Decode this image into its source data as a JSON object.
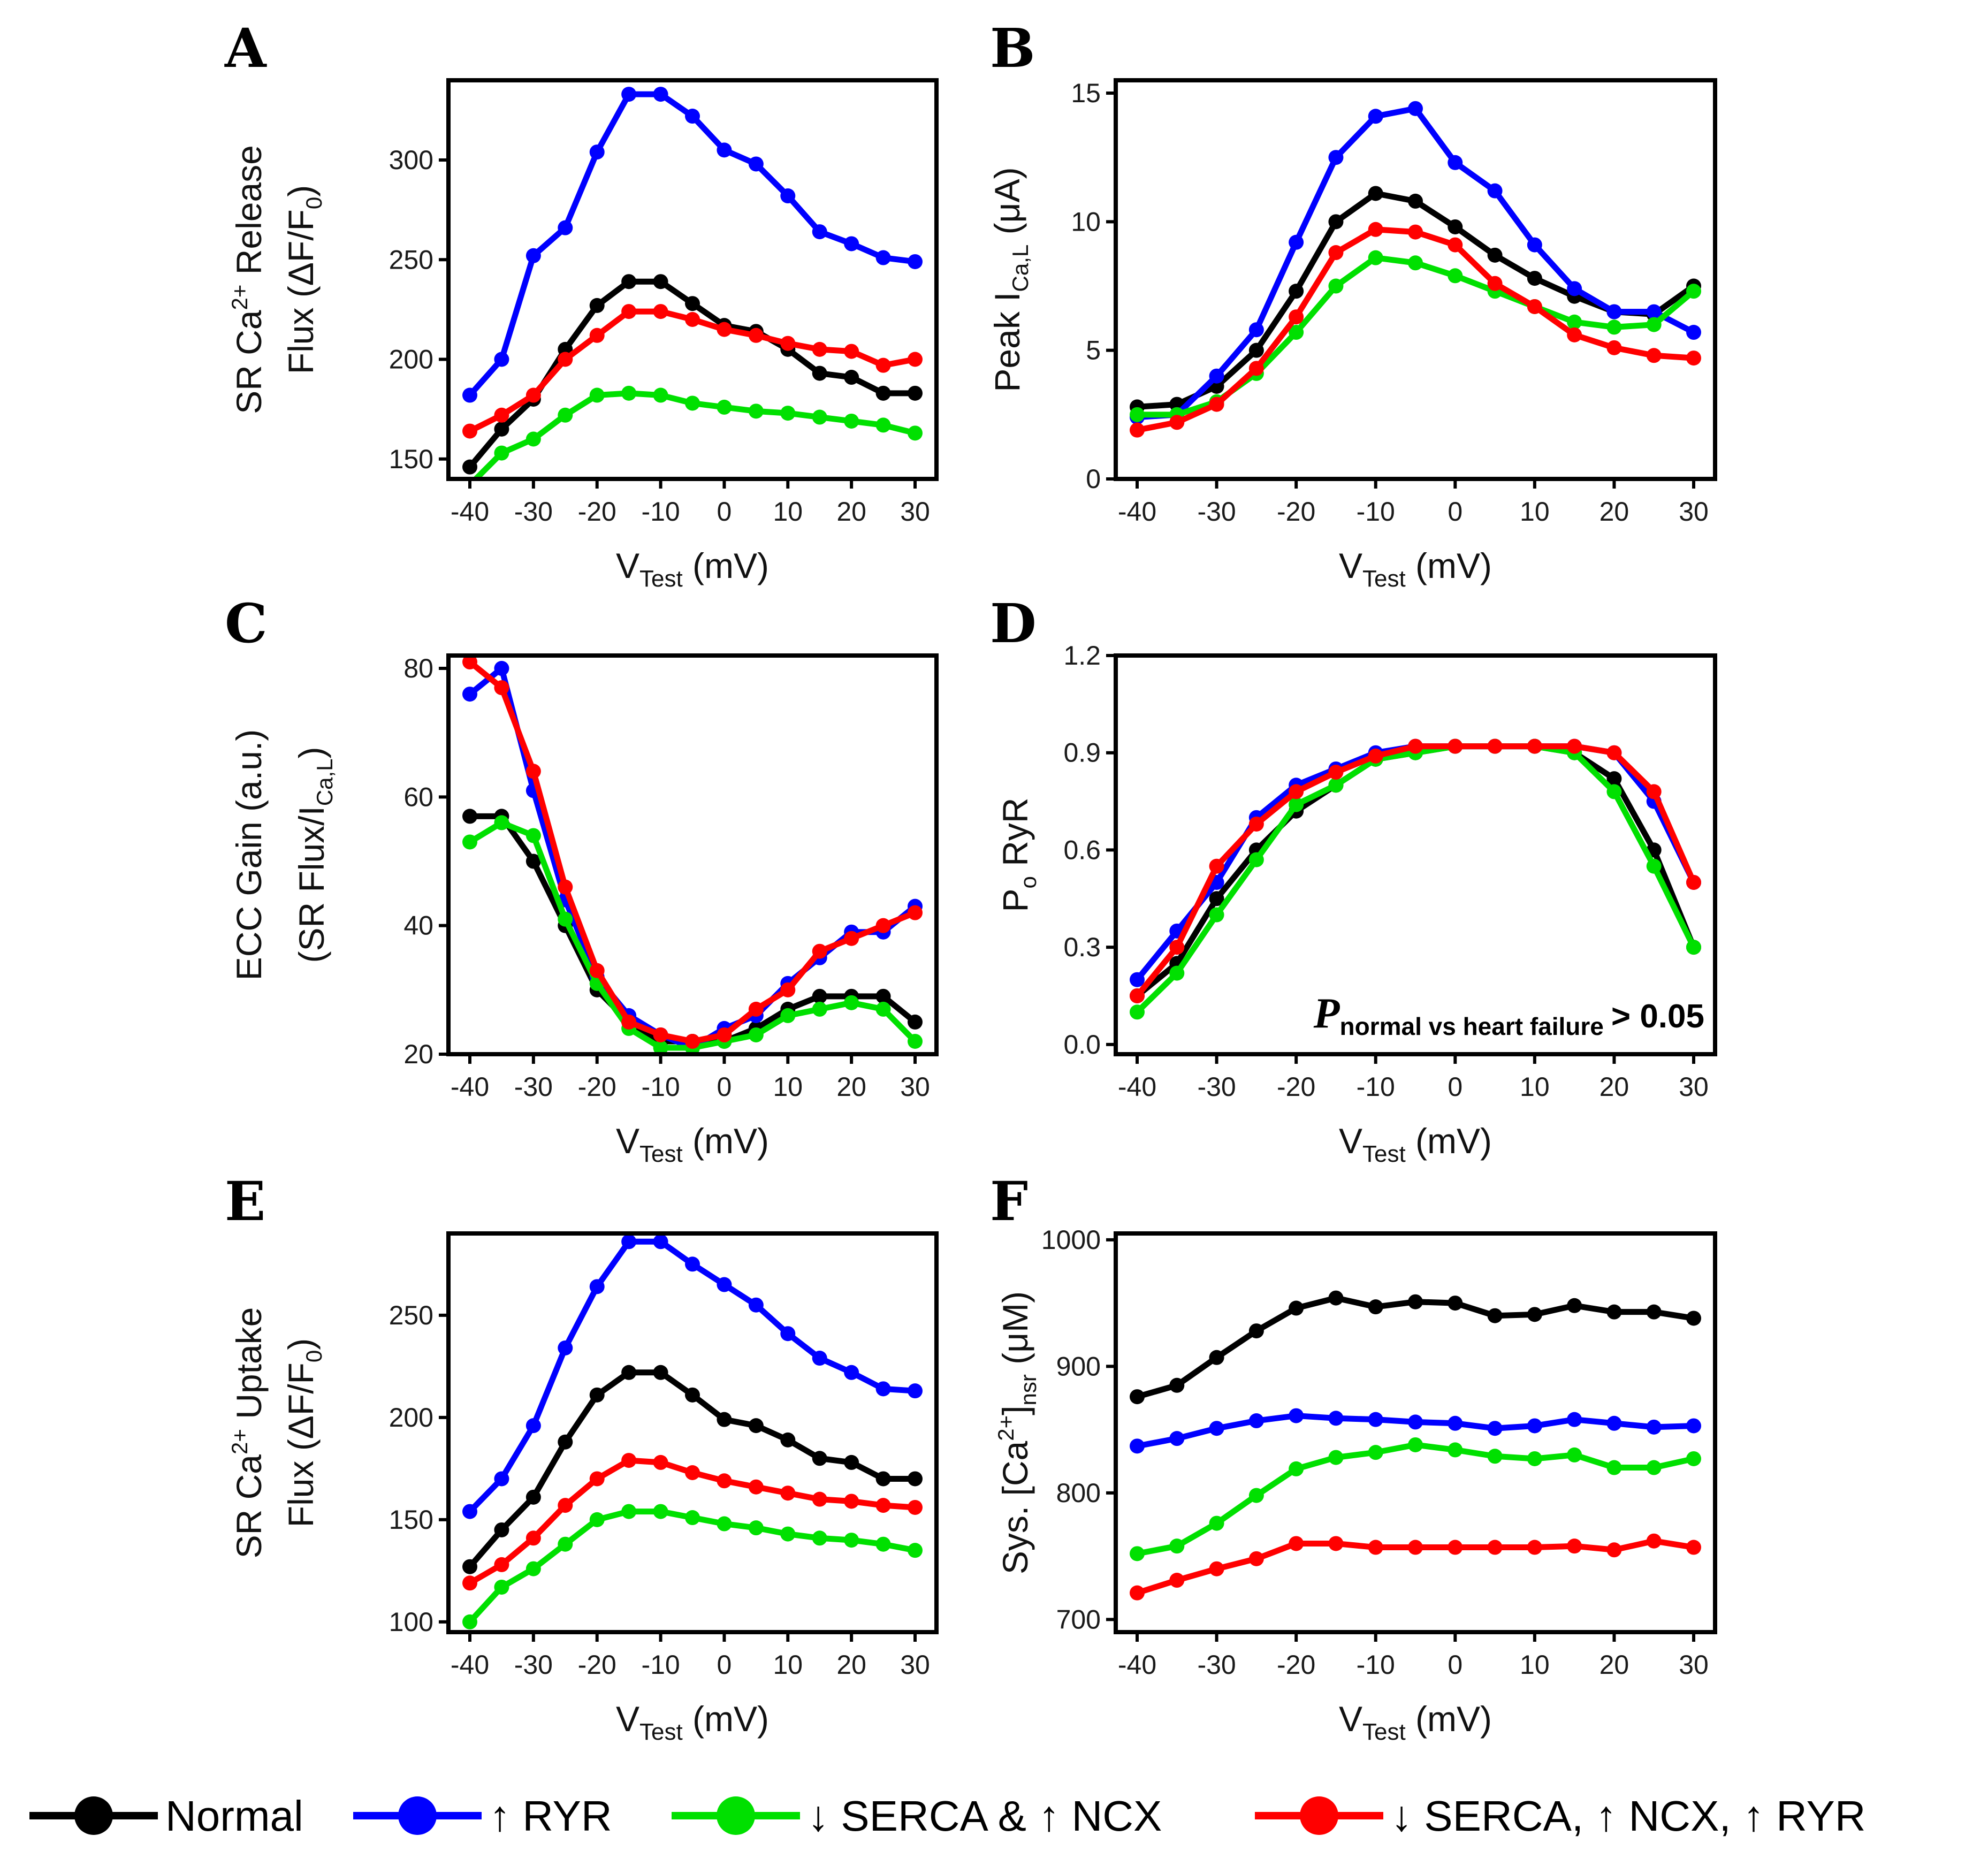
{
  "series_meta": [
    {
      "key": "normal",
      "name": "Normal",
      "color": "#000000"
    },
    {
      "key": "ryr",
      "name": "↑ RYR",
      "color": "#0000ff"
    },
    {
      "key": "serca_ncx",
      "name": "↓ SERCA & ↑ NCX",
      "color": "#00e000"
    },
    {
      "key": "serca_ncx_ryr",
      "name": "↓ SERCA, ↑ NCX, ↑ RYR",
      "color": "#ff0000"
    }
  ],
  "legend_items": [
    "Normal",
    "↑ RYR",
    "↓ SERCA & ↑ NCX",
    "↓ SERCA, ↑ NCX, ↑ RYR"
  ],
  "annotation_D": {
    "p": "P",
    "subscript": "normal vs heart failure",
    "comparator": "> 0.05"
  },
  "chart_data": [
    {
      "id": "A",
      "letter": "A",
      "type": "line",
      "xlabel_main": "V",
      "xlabel_sub": "Test",
      "xlabel_unit": " (mV)",
      "ylabel_line1": [
        "SR Ca",
        "2+",
        " Release"
      ],
      "ylabel_line2": [
        "Flux (ΔF/F",
        "0",
        ")"
      ],
      "x": [
        -40,
        -35,
        -30,
        -25,
        -20,
        -15,
        -10,
        -5,
        0,
        5,
        10,
        15,
        20,
        25,
        30
      ],
      "xticks": [
        -40,
        -30,
        -20,
        -10,
        0,
        10,
        20,
        30
      ],
      "xtick_labels": [
        "-40",
        "-30",
        "-20",
        "-10",
        "0",
        "10",
        "20",
        "30"
      ],
      "ylim": [
        140,
        340
      ],
      "yticks": [
        150,
        200,
        250,
        300
      ],
      "ytick_labels": [
        "150",
        "200",
        "250",
        "300"
      ],
      "series": [
        {
          "name": "Normal",
          "values": [
            146,
            165,
            180,
            205,
            227,
            239,
            239,
            228,
            217,
            214,
            205,
            193,
            191,
            183,
            183
          ]
        },
        {
          "name": "↑ RYR",
          "values": [
            182,
            200,
            252,
            266,
            304,
            333,
            333,
            322,
            305,
            298,
            282,
            264,
            258,
            251,
            249
          ]
        },
        {
          "name": "↓ SERCA & ↑ NCX",
          "values": [
            137,
            153,
            160,
            172,
            182,
            183,
            182,
            178,
            176,
            174,
            173,
            171,
            169,
            167,
            163
          ]
        },
        {
          "name": "↓ SERCA, ↑ NCX, ↑ RYR",
          "values": [
            164,
            172,
            182,
            200,
            212,
            224,
            224,
            220,
            215,
            212,
            208,
            205,
            204,
            197,
            200
          ]
        }
      ]
    },
    {
      "id": "B",
      "letter": "B",
      "type": "line",
      "xlabel_main": "V",
      "xlabel_sub": "Test",
      "xlabel_unit": " (mV)",
      "ylabel_line1": [
        "Peak I",
        "Ca,L",
        " (μA)"
      ],
      "x": [
        -40,
        -35,
        -30,
        -25,
        -20,
        -15,
        -10,
        -5,
        0,
        5,
        10,
        15,
        20,
        25,
        30
      ],
      "xticks": [
        -40,
        -30,
        -20,
        -10,
        0,
        10,
        20,
        30
      ],
      "xtick_labels": [
        "-40",
        "-30",
        "-20",
        "-10",
        "0",
        "10",
        "20",
        "30"
      ],
      "ylim": [
        0,
        15.5
      ],
      "yticks": [
        0,
        5,
        10,
        15
      ],
      "ytick_labels": [
        "0",
        "5",
        "10",
        "15"
      ],
      "series": [
        {
          "name": "Normal",
          "values": [
            2.8,
            2.9,
            3.6,
            5.0,
            7.3,
            10.0,
            11.1,
            10.8,
            9.8,
            8.7,
            7.8,
            7.1,
            6.5,
            6.4,
            7.5
          ]
        },
        {
          "name": "↑ RYR",
          "values": [
            2.4,
            2.5,
            4.0,
            5.8,
            9.2,
            12.5,
            14.1,
            14.4,
            12.3,
            11.2,
            9.1,
            7.4,
            6.5,
            6.5,
            5.7
          ]
        },
        {
          "name": "↓ SERCA & ↑ NCX",
          "values": [
            2.5,
            2.5,
            3.0,
            4.1,
            5.7,
            7.5,
            8.6,
            8.4,
            7.9,
            7.3,
            6.7,
            6.1,
            5.9,
            6.0,
            7.3
          ]
        },
        {
          "name": "↓ SERCA, ↑ NCX, ↑ RYR",
          "values": [
            1.9,
            2.2,
            2.9,
            4.3,
            6.3,
            8.8,
            9.7,
            9.6,
            9.1,
            7.6,
            6.7,
            5.6,
            5.1,
            4.8,
            4.7
          ]
        }
      ]
    },
    {
      "id": "C",
      "letter": "C",
      "type": "line",
      "xlabel_main": "V",
      "xlabel_sub": "Test",
      "xlabel_unit": " (mV)",
      "ylabel_line1": [
        "ECC Gain (a.u.)"
      ],
      "ylabel_line2": [
        "(SR Flux/I",
        "Ca,L",
        ")"
      ],
      "x": [
        -40,
        -35,
        -30,
        -25,
        -20,
        -15,
        -10,
        -5,
        0,
        5,
        10,
        15,
        20,
        25,
        30
      ],
      "xticks": [
        -40,
        -30,
        -20,
        -10,
        0,
        10,
        20,
        30
      ],
      "xtick_labels": [
        "-40",
        "-30",
        "-20",
        "-10",
        "0",
        "10",
        "20",
        "30"
      ],
      "ylim": [
        20,
        82
      ],
      "yticks": [
        20,
        40,
        60,
        80
      ],
      "ytick_labels": [
        "20",
        "40",
        "60",
        "80"
      ],
      "series": [
        {
          "name": "Normal",
          "values": [
            57,
            57,
            50,
            40,
            30,
            25,
            22,
            22,
            22,
            24,
            27,
            29,
            29,
            29,
            25
          ]
        },
        {
          "name": "↑ RYR",
          "values": [
            76,
            80,
            61,
            44,
            32,
            26,
            23,
            21,
            24,
            26,
            31,
            35,
            39,
            39,
            43
          ]
        },
        {
          "name": "↓ SERCA & ↑ NCX",
          "values": [
            53,
            56,
            54,
            41,
            31,
            24,
            21,
            21,
            22,
            23,
            26,
            27,
            28,
            27,
            22
          ]
        },
        {
          "name": "↓ SERCA, ↑ NCX, ↑ RYR",
          "values": [
            81,
            77,
            64,
            46,
            33,
            25,
            23,
            22,
            23,
            27,
            30,
            36,
            38,
            40,
            42
          ]
        }
      ]
    },
    {
      "id": "D",
      "letter": "D",
      "type": "line",
      "xlabel_main": "V",
      "xlabel_sub": "Test",
      "xlabel_unit": " (mV)",
      "ylabel_line1": [
        "P",
        "o",
        " RyR"
      ],
      "x": [
        -40,
        -35,
        -30,
        -25,
        -20,
        -15,
        -10,
        -5,
        0,
        5,
        10,
        15,
        20,
        25,
        30
      ],
      "xticks": [
        -40,
        -30,
        -20,
        -10,
        0,
        10,
        20,
        30
      ],
      "xtick_labels": [
        "-40",
        "-30",
        "-20",
        "-10",
        "0",
        "10",
        "20",
        "30"
      ],
      "ylim": [
        -0.03,
        1.2
      ],
      "yticks": [
        0.0,
        0.3,
        0.6,
        0.9,
        1.2
      ],
      "ytick_labels": [
        "0.0",
        "0.3",
        "0.6",
        "0.9",
        "1.2"
      ],
      "series": [
        {
          "name": "Normal",
          "values": [
            0.15,
            0.25,
            0.45,
            0.6,
            0.72,
            0.8,
            0.88,
            0.9,
            0.92,
            0.92,
            0.92,
            0.9,
            0.82,
            0.6,
            0.3
          ]
        },
        {
          "name": "↑ RYR",
          "values": [
            0.2,
            0.35,
            0.5,
            0.7,
            0.8,
            0.85,
            0.9,
            0.92,
            0.92,
            0.92,
            0.92,
            0.92,
            0.9,
            0.75,
            0.5
          ]
        },
        {
          "name": "↓ SERCA & ↑ NCX",
          "values": [
            0.1,
            0.22,
            0.4,
            0.57,
            0.74,
            0.8,
            0.88,
            0.9,
            0.92,
            0.92,
            0.92,
            0.9,
            0.78,
            0.55,
            0.3
          ]
        },
        {
          "name": "↓ SERCA, ↑ NCX, ↑ RYR",
          "values": [
            0.15,
            0.3,
            0.55,
            0.68,
            0.78,
            0.84,
            0.89,
            0.92,
            0.92,
            0.92,
            0.92,
            0.92,
            0.9,
            0.78,
            0.5
          ]
        }
      ]
    },
    {
      "id": "E",
      "letter": "E",
      "type": "line",
      "xlabel_main": "V",
      "xlabel_sub": "Test",
      "xlabel_unit": " (mV)",
      "ylabel_line1": [
        "SR Ca",
        "2+",
        " Uptake"
      ],
      "ylabel_line2": [
        "Flux (ΔF/F",
        "0",
        ")"
      ],
      "x": [
        -40,
        -35,
        -30,
        -25,
        -20,
        -15,
        -10,
        -5,
        0,
        5,
        10,
        15,
        20,
        25,
        30
      ],
      "xticks": [
        -40,
        -30,
        -20,
        -10,
        0,
        10,
        20,
        30
      ],
      "xtick_labels": [
        "-40",
        "-30",
        "-20",
        "-10",
        "0",
        "10",
        "20",
        "30"
      ],
      "ylim": [
        95,
        290
      ],
      "yticks": [
        100,
        150,
        200,
        250
      ],
      "ytick_labels": [
        "100",
        "150",
        "200",
        "250"
      ],
      "series": [
        {
          "name": "Normal",
          "values": [
            127,
            145,
            161,
            188,
            211,
            222,
            222,
            211,
            199,
            196,
            189,
            180,
            178,
            170,
            170
          ]
        },
        {
          "name": "↑ RYR",
          "values": [
            154,
            170,
            196,
            234,
            264,
            286,
            286,
            275,
            265,
            255,
            241,
            229,
            222,
            214,
            213
          ]
        },
        {
          "name": "↓ SERCA & ↑ NCX",
          "values": [
            100,
            117,
            126,
            138,
            150,
            154,
            154,
            151,
            148,
            146,
            143,
            141,
            140,
            138,
            135
          ]
        },
        {
          "name": "↓ SERCA, ↑ NCX, ↑ RYR",
          "values": [
            119,
            128,
            141,
            157,
            170,
            179,
            178,
            173,
            169,
            166,
            163,
            160,
            159,
            157,
            156
          ]
        }
      ]
    },
    {
      "id": "F",
      "letter": "F",
      "type": "line",
      "xlabel_main": "V",
      "xlabel_sub": "Test",
      "xlabel_unit": " (mV)",
      "ylabel_line1": [
        "Sys. [Ca",
        "2+",
        "]",
        "nsr",
        " (μM)"
      ],
      "x": [
        -40,
        -35,
        -30,
        -25,
        -20,
        -15,
        -10,
        -5,
        0,
        5,
        10,
        15,
        20,
        25,
        30
      ],
      "xticks": [
        -40,
        -30,
        -20,
        -10,
        0,
        10,
        20,
        30
      ],
      "xtick_labels": [
        "-40",
        "-30",
        "-20",
        "-10",
        "0",
        "10",
        "20",
        "30"
      ],
      "ylim": [
        690,
        1005
      ],
      "yticks": [
        700,
        800,
        900,
        1000
      ],
      "ytick_labels": [
        "700",
        "800",
        "900",
        "1000"
      ],
      "series": [
        {
          "name": "Normal",
          "values": [
            876,
            885,
            907,
            928,
            946,
            954,
            947,
            951,
            950,
            940,
            941,
            948,
            943,
            943,
            938
          ]
        },
        {
          "name": "↑ RYR",
          "values": [
            837,
            843,
            851,
            857,
            861,
            859,
            858,
            856,
            855,
            851,
            853,
            858,
            855,
            852,
            853
          ]
        },
        {
          "name": "↓ SERCA & ↑ NCX",
          "values": [
            752,
            758,
            776,
            798,
            819,
            828,
            832,
            838,
            834,
            829,
            827,
            830,
            820,
            820,
            827
          ]
        },
        {
          "name": "↓ SERCA, ↑ NCX, ↑ RYR",
          "values": [
            721,
            731,
            740,
            748,
            760,
            760,
            757,
            757,
            757,
            757,
            757,
            758,
            755,
            762,
            757
          ]
        }
      ]
    }
  ]
}
